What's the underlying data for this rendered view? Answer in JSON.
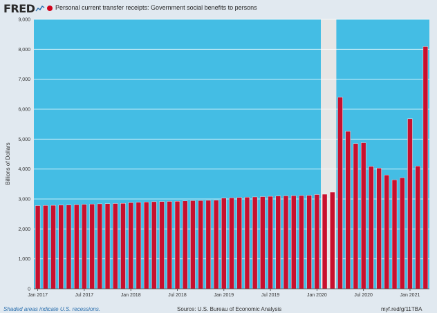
{
  "header": {
    "logo_text": "FRED",
    "logo_icon": "line-chart-icon",
    "series_title": "Personal current transfer receipts: Government social benefits to persons"
  },
  "footer": {
    "recession_note": "Shaded areas indicate U.S. recessions.",
    "source": "Source: U.S. Bureau of Economic Analysis",
    "short_url": "myf.red/g/11TBA"
  },
  "colors": {
    "background": "#e1e9f0",
    "plot_area": "#44bde4",
    "recession_shade": "#e6e6e6",
    "bar": "#c8102e",
    "bar_outline": "#ffffff"
  },
  "chart_data": {
    "type": "bar",
    "ylabel": "Billions of Dollars",
    "ylim": [
      0,
      9000
    ],
    "y_ticks": [
      0,
      1000,
      2000,
      3000,
      4000,
      5000,
      6000,
      7000,
      8000,
      9000
    ],
    "y_tick_labels": [
      "0",
      "1,000",
      "2,000",
      "3,000",
      "4,000",
      "5,000",
      "6,000",
      "7,000",
      "8,000",
      "9,000"
    ],
    "x_tick_labels": [
      {
        "label": "Jan 2017",
        "index": 0
      },
      {
        "label": "Jul 2017",
        "index": 6
      },
      {
        "label": "Jan 2018",
        "index": 12
      },
      {
        "label": "Jul 2018",
        "index": 18
      },
      {
        "label": "Jan 2019",
        "index": 24
      },
      {
        "label": "Jul 2019",
        "index": 30
      },
      {
        "label": "Jan 2020",
        "index": 36
      },
      {
        "label": "Jul 2020",
        "index": 42
      },
      {
        "label": "Jan 2021",
        "index": 48
      }
    ],
    "recession": {
      "start_index": 37,
      "end_index": 38
    },
    "grid": true,
    "legend": "top-left",
    "categories": [
      "2017-01",
      "2017-02",
      "2017-03",
      "2017-04",
      "2017-05",
      "2017-06",
      "2017-07",
      "2017-08",
      "2017-09",
      "2017-10",
      "2017-11",
      "2017-12",
      "2018-01",
      "2018-02",
      "2018-03",
      "2018-04",
      "2018-05",
      "2018-06",
      "2018-07",
      "2018-08",
      "2018-09",
      "2018-10",
      "2018-11",
      "2018-12",
      "2019-01",
      "2019-02",
      "2019-03",
      "2019-04",
      "2019-05",
      "2019-06",
      "2019-07",
      "2019-08",
      "2019-09",
      "2019-10",
      "2019-11",
      "2019-12",
      "2020-01",
      "2020-02",
      "2020-03",
      "2020-04",
      "2020-05",
      "2020-06",
      "2020-07",
      "2020-08",
      "2020-09",
      "2020-10",
      "2020-11",
      "2020-12",
      "2021-01",
      "2021-02",
      "2021-03"
    ],
    "values": [
      2780,
      2785,
      2790,
      2795,
      2800,
      2810,
      2820,
      2830,
      2840,
      2845,
      2850,
      2855,
      2880,
      2890,
      2900,
      2910,
      2915,
      2920,
      2925,
      2935,
      2945,
      2950,
      2955,
      2960,
      3030,
      3040,
      3050,
      3060,
      3070,
      3080,
      3090,
      3100,
      3105,
      3110,
      3115,
      3120,
      3150,
      3160,
      3230,
      6400,
      5260,
      4850,
      4880,
      4090,
      4030,
      3800,
      3640,
      3710,
      5680,
      4100,
      8090
    ]
  }
}
